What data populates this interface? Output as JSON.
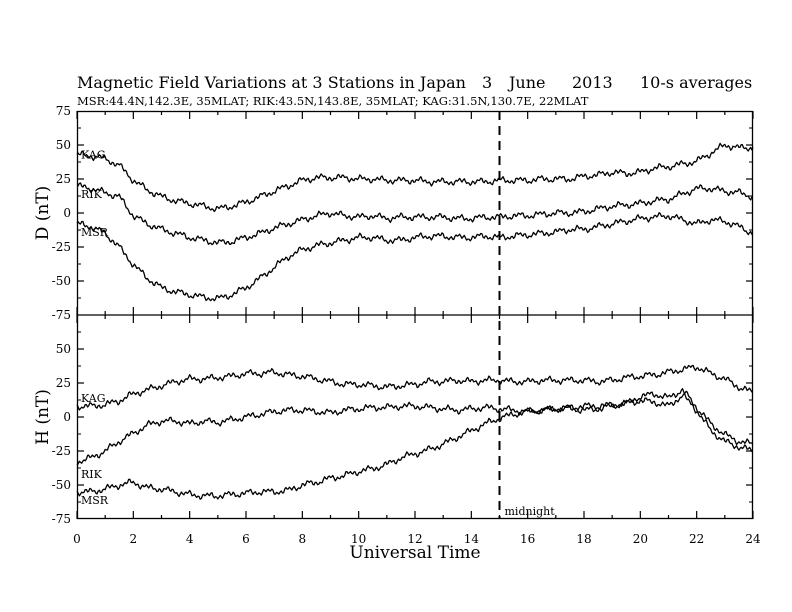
{
  "title_line": {
    "title": "Magnetic Field Variations at 3 Stations in Japan",
    "day": "3",
    "month": "June",
    "year": "2013",
    "resolution": "10-s averages"
  },
  "subtitle": "MSR:44.4N,142.3E, 35MLAT;  RIK:43.5N,143.8E, 35MLAT;  KAG:31.5N,130.7E, 22MLAT",
  "chart_data": [
    {
      "type": "line",
      "panel": "top",
      "ylabel": "D (nT)",
      "xlabel": "",
      "xlim": [
        0,
        24
      ],
      "ylim": [
        -75,
        75
      ],
      "x_ticks": [
        "0",
        "2",
        "4",
        "6",
        "8",
        "10",
        "12",
        "14",
        "16",
        "18",
        "20",
        "22",
        "24"
      ],
      "y_ticks": [
        "75",
        "50",
        "25",
        "0",
        "-25",
        "-50",
        "-75"
      ],
      "x": [
        0,
        0.5,
        1,
        1.5,
        2,
        2.5,
        3,
        3.5,
        4,
        4.5,
        5,
        5.5,
        6,
        6.5,
        7,
        7.5,
        8,
        8.5,
        9,
        9.5,
        10,
        10.5,
        11,
        11.5,
        12,
        12.5,
        13,
        13.5,
        14,
        14.5,
        15,
        15.5,
        16,
        16.5,
        17,
        17.5,
        18,
        18.5,
        19,
        19.5,
        20,
        20.5,
        21,
        21.5,
        22,
        22.5,
        23,
        23.5,
        24
      ],
      "series": [
        {
          "name": "KAG",
          "values": [
            43,
            42,
            40,
            35,
            24,
            17,
            12,
            9,
            7,
            5,
            3,
            5,
            8,
            12,
            16,
            20,
            24,
            26,
            26,
            26,
            25,
            25,
            24,
            24,
            24,
            23,
            23,
            23,
            23,
            23,
            24,
            24,
            24,
            25,
            25,
            25,
            27,
            28,
            30,
            29,
            30,
            33,
            34,
            36,
            38,
            44,
            50,
            48,
            48
          ]
        },
        {
          "name": "RIK",
          "values": [
            20,
            18,
            15,
            12,
            -2,
            -8,
            -12,
            -15,
            -18,
            -20,
            -22,
            -21,
            -18,
            -15,
            -11,
            -8,
            -5,
            -2,
            0,
            -2,
            -3,
            -2,
            -4,
            -3,
            -3,
            -3,
            -3,
            -4,
            -4,
            -3,
            -3,
            -2,
            -2,
            -1,
            0,
            0,
            1,
            3,
            5,
            6,
            7,
            9,
            10,
            14,
            18,
            18,
            16,
            15,
            12
          ]
        },
        {
          "name": "MSR",
          "values": [
            -8,
            -10,
            -15,
            -25,
            -38,
            -48,
            -55,
            -58,
            -60,
            -62,
            -63,
            -60,
            -55,
            -48,
            -40,
            -32,
            -27,
            -24,
            -22,
            -20,
            -18,
            -18,
            -20,
            -20,
            -18,
            -17,
            -17,
            -18,
            -18,
            -17,
            -18,
            -17,
            -16,
            -15,
            -14,
            -12,
            -12,
            -10,
            -8,
            -6,
            -4,
            -3,
            -2,
            -5,
            -8,
            -5,
            -6,
            -10,
            -15
          ]
        }
      ]
    },
    {
      "type": "line",
      "panel": "bottom",
      "ylabel": "H (nT)",
      "xlabel": "Universal Time",
      "xlim": [
        0,
        24
      ],
      "ylim": [
        -75,
        75
      ],
      "x_ticks": [
        "0",
        "2",
        "4",
        "6",
        "8",
        "10",
        "12",
        "14",
        "16",
        "18",
        "20",
        "22",
        "24"
      ],
      "y_ticks": [
        "75",
        "50",
        "25",
        "0",
        "-25",
        "-50",
        "-75"
      ],
      "x": [
        0,
        0.5,
        1,
        1.5,
        2,
        2.5,
        3,
        3.5,
        4,
        4.5,
        5,
        5.5,
        6,
        6.5,
        7,
        7.5,
        8,
        8.5,
        9,
        9.5,
        10,
        10.5,
        11,
        11.5,
        12,
        12.5,
        13,
        13.5,
        14,
        14.5,
        15,
        15.5,
        16,
        16.5,
        17,
        17.5,
        18,
        18.5,
        19,
        19.5,
        20,
        20.5,
        21,
        21.5,
        22,
        22.5,
        23,
        23.5,
        24
      ],
      "series": [
        {
          "name": "KAG",
          "values": [
            8,
            8,
            9,
            12,
            17,
            20,
            23,
            26,
            28,
            28,
            29,
            30,
            32,
            32,
            33,
            31,
            30,
            28,
            26,
            24,
            24,
            23,
            22,
            23,
            24,
            26,
            26,
            27,
            26,
            27,
            27,
            26,
            26,
            27,
            27,
            27,
            27,
            26,
            27,
            29,
            30,
            31,
            33,
            35,
            37,
            32,
            28,
            22,
            18
          ]
        },
        {
          "name": "RIK",
          "values": [
            -33,
            -30,
            -25,
            -18,
            -12,
            -6,
            -3,
            -3,
            -5,
            -3,
            -4,
            -2,
            0,
            2,
            4,
            5,
            5,
            4,
            3,
            5,
            6,
            7,
            7,
            8,
            8,
            7,
            6,
            5,
            6,
            7,
            6,
            5,
            4,
            5,
            6,
            6,
            5,
            6,
            8,
            10,
            15,
            17,
            14,
            20,
            7,
            -5,
            -13,
            -18,
            -20
          ]
        },
        {
          "name": "MSR",
          "values": [
            -55,
            -55,
            -53,
            -50,
            -48,
            -52,
            -53,
            -55,
            -57,
            -58,
            -58,
            -57,
            -56,
            -55,
            -55,
            -54,
            -50,
            -48,
            -45,
            -43,
            -40,
            -38,
            -35,
            -30,
            -27,
            -24,
            -20,
            -15,
            -10,
            -5,
            -1,
            2,
            4,
            5,
            6,
            7,
            8,
            8,
            9,
            10,
            12,
            11,
            8,
            16,
            5,
            -10,
            -18,
            -22,
            -25
          ]
        }
      ]
    }
  ],
  "annotation": {
    "midnight_label": "midnight",
    "midnight_time": 15
  }
}
